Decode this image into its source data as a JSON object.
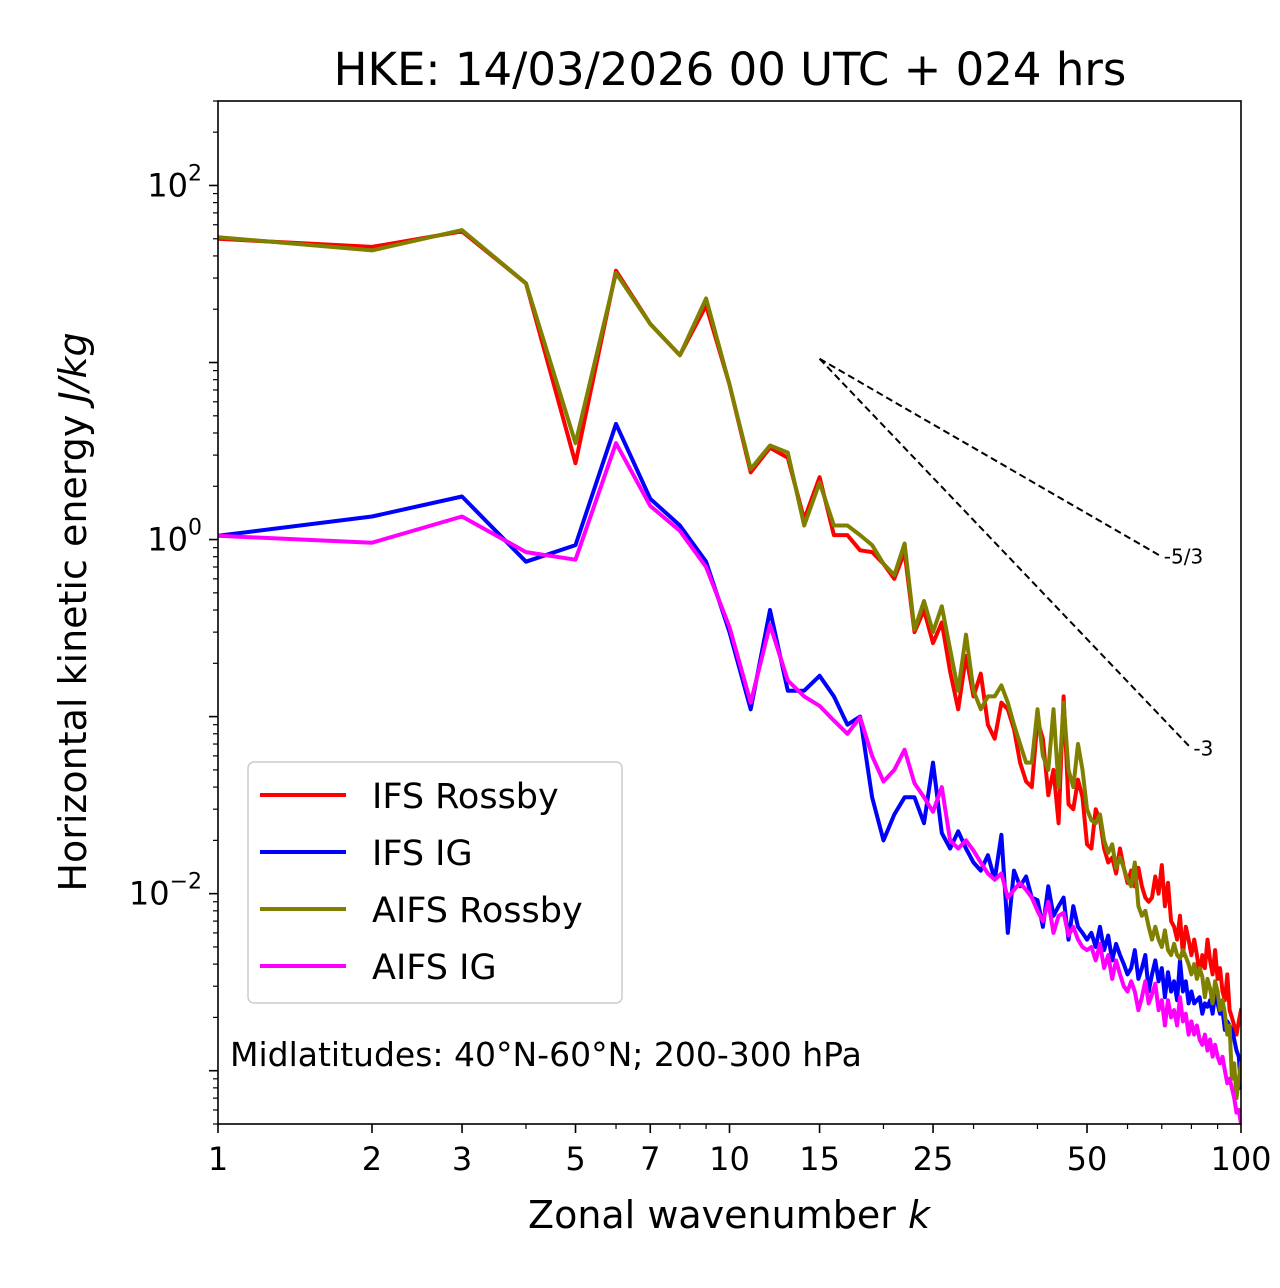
{
  "chart_data": {
    "type": "line",
    "title": "HKE: 14/03/2026 00 UTC + 024 hrs",
    "xlabel": "Zonal wavenumber",
    "xlabel_var": "k",
    "ylabel": "Horizontal kinetic energy",
    "ylabel_unit": "J/kg",
    "xscale": "log",
    "yscale": "log",
    "xlim": [
      1,
      100
    ],
    "ylim": [
      0.0005,
      300
    ],
    "xticks": [
      1,
      2,
      3,
      5,
      7,
      10,
      15,
      25,
      50,
      100
    ],
    "xtick_labels": [
      "1",
      "2",
      "3",
      "5",
      "7",
      "10",
      "15",
      "25",
      "50",
      "100"
    ],
    "yticks": [
      {
        "value": 100,
        "base": "10",
        "exp": "2"
      },
      {
        "value": 1,
        "base": "10",
        "exp": "0"
      },
      {
        "value": 0.01,
        "base": "10",
        "exp": "−2"
      }
    ],
    "legend": {
      "location": "lower-left",
      "entries": [
        "IFS Rossby",
        "IFS IG",
        "AIFS Rossby",
        "AIFS IG"
      ]
    },
    "annotation": "Midlatitudes: 40°N-60°N; 200-300 hPa",
    "reference_slopes": [
      {
        "label": "-5/3",
        "x0": 15,
        "y0": 10.5,
        "x1": 70,
        "y1": 0.8
      },
      {
        "label": "-3",
        "x0": 15,
        "y0": 10.5,
        "x1": 80,
        "y1": 0.066
      }
    ],
    "series": [
      {
        "name": "IFS Rossby",
        "color": "#ff0000",
        "x": [
          1,
          2,
          3,
          4,
          5,
          6,
          7,
          8,
          9,
          10,
          11,
          12,
          13,
          14,
          15,
          16,
          17,
          18,
          19,
          20,
          21,
          22,
          23,
          24,
          25,
          26,
          27,
          28,
          29,
          30,
          31,
          32,
          33,
          34,
          35,
          36,
          37,
          38,
          39,
          40,
          41,
          42,
          43,
          44,
          45,
          46,
          47,
          48,
          49,
          50,
          51,
          52,
          53,
          54,
          55,
          56,
          57,
          58,
          59,
          60,
          61,
          62,
          63,
          64,
          65,
          66,
          67,
          68,
          69,
          70,
          71,
          72,
          73,
          74,
          75,
          76,
          77,
          78,
          79,
          80,
          81,
          82,
          83,
          84,
          85,
          86,
          87,
          88,
          89,
          90,
          91,
          92,
          93,
          94,
          95,
          96,
          97,
          98,
          99,
          100
        ],
        "values": [
          50,
          45,
          55,
          28,
          2.7,
          33,
          16.5,
          11,
          21,
          7.5,
          2.4,
          3.3,
          2.9,
          1.3,
          2.25,
          1.06,
          1.06,
          0.87,
          0.85,
          0.73,
          0.6,
          0.85,
          0.3,
          0.4,
          0.26,
          0.34,
          0.18,
          0.11,
          0.22,
          0.13,
          0.175,
          0.09,
          0.075,
          0.12,
          0.11,
          0.085,
          0.055,
          0.043,
          0.04,
          0.095,
          0.075,
          0.036,
          0.05,
          0.025,
          0.13,
          0.032,
          0.03,
          0.044,
          0.035,
          0.019,
          0.018,
          0.03,
          0.026,
          0.018,
          0.015,
          0.016,
          0.013,
          0.018,
          0.014,
          0.0115,
          0.0135,
          0.011,
          0.014,
          0.011,
          0.0095,
          0.009,
          0.0095,
          0.0125,
          0.01,
          0.0145,
          0.0085,
          0.0115,
          0.007,
          0.0065,
          0.0055,
          0.0075,
          0.0045,
          0.0065,
          0.0055,
          0.0045,
          0.0055,
          0.0045,
          0.0035,
          0.0045,
          0.0038,
          0.0055,
          0.0042,
          0.0035,
          0.0048,
          0.0033,
          0.0038,
          0.0028,
          0.0025,
          0.0035,
          0.0022,
          0.002,
          0.0018,
          0.0016,
          0.0019,
          0.0022
        ]
      },
      {
        "name": "IFS IG",
        "color": "#0000ff",
        "x": [
          1,
          2,
          3,
          4,
          5,
          6,
          7,
          8,
          9,
          10,
          11,
          12,
          13,
          14,
          15,
          16,
          17,
          18,
          19,
          20,
          21,
          22,
          23,
          24,
          25,
          26,
          27,
          28,
          29,
          30,
          31,
          32,
          33,
          34,
          35,
          36,
          37,
          38,
          39,
          40,
          41,
          42,
          43,
          44,
          45,
          46,
          47,
          48,
          49,
          50,
          51,
          52,
          53,
          54,
          55,
          56,
          57,
          58,
          59,
          60,
          61,
          62,
          63,
          64,
          65,
          66,
          67,
          68,
          69,
          70,
          71,
          72,
          73,
          74,
          75,
          76,
          77,
          78,
          79,
          80,
          81,
          82,
          83,
          84,
          85,
          86,
          87,
          88,
          89,
          90,
          91,
          92,
          93,
          94,
          95,
          96,
          97,
          98,
          99,
          100
        ],
        "values": [
          1.05,
          1.35,
          1.75,
          0.75,
          0.93,
          4.5,
          1.7,
          1.2,
          0.75,
          0.3,
          0.11,
          0.4,
          0.14,
          0.14,
          0.17,
          0.13,
          0.09,
          0.1,
          0.035,
          0.02,
          0.028,
          0.035,
          0.035,
          0.025,
          0.055,
          0.022,
          0.018,
          0.0225,
          0.018,
          0.015,
          0.0135,
          0.0165,
          0.012,
          0.0215,
          0.006,
          0.0135,
          0.011,
          0.0125,
          0.0095,
          0.0092,
          0.0065,
          0.011,
          0.0075,
          0.0085,
          0.0095,
          0.0055,
          0.0085,
          0.0065,
          0.006,
          0.0055,
          0.006,
          0.005,
          0.0065,
          0.0048,
          0.0058,
          0.0042,
          0.0052,
          0.0045,
          0.004,
          0.0035,
          0.0038,
          0.0048,
          0.0033,
          0.0038,
          0.0045,
          0.0028,
          0.0035,
          0.0042,
          0.0032,
          0.0038,
          0.0026,
          0.0036,
          0.0028,
          0.0032,
          0.0025,
          0.0042,
          0.0028,
          0.0032,
          0.0024,
          0.0028,
          0.0024,
          0.0025,
          0.0026,
          0.0021,
          0.0024,
          0.0023,
          0.0025,
          0.0021,
          0.0027,
          0.0024,
          0.0021,
          0.0022,
          0.0017,
          0.0019,
          0.0018,
          0.0017,
          0.0015,
          0.0013,
          0.0012,
          0.0008
        ]
      },
      {
        "name": "AIFS Rossby",
        "color": "#808000",
        "x": [
          1,
          2,
          3,
          4,
          5,
          6,
          7,
          8,
          9,
          10,
          11,
          12,
          13,
          14,
          15,
          16,
          17,
          18,
          19,
          20,
          21,
          22,
          23,
          24,
          25,
          26,
          27,
          28,
          29,
          30,
          31,
          32,
          33,
          34,
          35,
          36,
          37,
          38,
          39,
          40,
          41,
          42,
          43,
          44,
          45,
          46,
          47,
          48,
          49,
          50,
          51,
          52,
          53,
          54,
          55,
          56,
          57,
          58,
          59,
          60,
          61,
          62,
          63,
          64,
          65,
          66,
          67,
          68,
          69,
          70,
          71,
          72,
          73,
          74,
          75,
          76,
          77,
          78,
          79,
          80,
          81,
          82,
          83,
          84,
          85,
          86,
          87,
          88,
          89,
          90,
          91,
          92,
          93,
          94,
          95,
          96,
          97,
          98,
          99,
          100
        ],
        "values": [
          51,
          43,
          56,
          28,
          3.5,
          32,
          16.5,
          11,
          23,
          7.5,
          2.5,
          3.4,
          3.1,
          1.2,
          2.1,
          1.2,
          1.2,
          1.06,
          0.93,
          0.73,
          0.63,
          0.95,
          0.31,
          0.45,
          0.3,
          0.42,
          0.24,
          0.14,
          0.29,
          0.14,
          0.11,
          0.13,
          0.13,
          0.15,
          0.12,
          0.09,
          0.07,
          0.055,
          0.055,
          0.11,
          0.06,
          0.05,
          0.11,
          0.04,
          0.12,
          0.05,
          0.04,
          0.07,
          0.05,
          0.03,
          0.026,
          0.025,
          0.028,
          0.02,
          0.017,
          0.019,
          0.014,
          0.016,
          0.014,
          0.012,
          0.011,
          0.015,
          0.0085,
          0.0075,
          0.008,
          0.0065,
          0.0055,
          0.0065,
          0.0055,
          0.005,
          0.0062,
          0.0048,
          0.0045,
          0.0052,
          0.0045,
          0.0043,
          0.0048,
          0.0044,
          0.004,
          0.0035,
          0.004,
          0.0033,
          0.0038,
          0.0034,
          0.0026,
          0.0033,
          0.0029,
          0.0024,
          0.0032,
          0.0028,
          0.0022,
          0.0025,
          0.0021,
          0.0016,
          0.0018,
          0.0009,
          0.0011,
          0.0007,
          0.0009,
          0.0011
        ]
      },
      {
        "name": "AIFS IG",
        "color": "#ff00ff",
        "x": [
          1,
          2,
          3,
          4,
          5,
          6,
          7,
          8,
          9,
          10,
          11,
          12,
          13,
          14,
          15,
          16,
          17,
          18,
          19,
          20,
          21,
          22,
          23,
          24,
          25,
          26,
          27,
          28,
          29,
          30,
          31,
          32,
          33,
          34,
          35,
          36,
          37,
          38,
          39,
          40,
          41,
          42,
          43,
          44,
          45,
          46,
          47,
          48,
          49,
          50,
          51,
          52,
          53,
          54,
          55,
          56,
          57,
          58,
          59,
          60,
          61,
          62,
          63,
          64,
          65,
          66,
          67,
          68,
          69,
          70,
          71,
          72,
          73,
          74,
          75,
          76,
          77,
          78,
          79,
          80,
          81,
          82,
          83,
          84,
          85,
          86,
          87,
          88,
          89,
          90,
          91,
          92,
          93,
          94,
          95,
          96,
          97,
          98,
          99,
          100
        ],
        "values": [
          1.05,
          0.96,
          1.35,
          0.85,
          0.77,
          3.5,
          1.55,
          1.12,
          0.7,
          0.32,
          0.12,
          0.33,
          0.16,
          0.13,
          0.115,
          0.095,
          0.08,
          0.099,
          0.06,
          0.043,
          0.05,
          0.065,
          0.042,
          0.035,
          0.029,
          0.04,
          0.02,
          0.018,
          0.02,
          0.0175,
          0.015,
          0.013,
          0.012,
          0.013,
          0.0095,
          0.0105,
          0.0115,
          0.0105,
          0.0095,
          0.008,
          0.007,
          0.009,
          0.006,
          0.0075,
          0.0078,
          0.0058,
          0.0065,
          0.0055,
          0.005,
          0.0048,
          0.005,
          0.0042,
          0.0052,
          0.0038,
          0.0045,
          0.0033,
          0.0042,
          0.0035,
          0.003,
          0.0028,
          0.0032,
          0.0028,
          0.0022,
          0.0026,
          0.0032,
          0.0024,
          0.0027,
          0.0031,
          0.0022,
          0.0025,
          0.0018,
          0.0025,
          0.002,
          0.0022,
          0.0018,
          0.0026,
          0.0019,
          0.0021,
          0.0016,
          0.0019,
          0.0016,
          0.0018,
          0.0015,
          0.0014,
          0.0016,
          0.0013,
          0.0015,
          0.0012,
          0.0014,
          0.0012,
          0.0011,
          0.0012,
          0.001,
          0.00085,
          0.0009,
          0.0008,
          0.0007,
          0.00058,
          0.0006,
          0.0005
        ]
      }
    ]
  }
}
